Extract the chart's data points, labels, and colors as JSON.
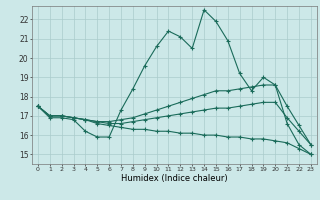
{
  "xlabel": "Humidex (Indice chaleur)",
  "background_color": "#cce8e8",
  "grid_color": "#aacccc",
  "line_color": "#1a6b5a",
  "xlim": [
    -0.5,
    23.5
  ],
  "ylim": [
    14.5,
    22.7
  ],
  "xticks": [
    0,
    1,
    2,
    3,
    4,
    5,
    6,
    7,
    8,
    9,
    10,
    11,
    12,
    13,
    14,
    15,
    16,
    17,
    18,
    19,
    20,
    21,
    22,
    23
  ],
  "yticks": [
    15,
    16,
    17,
    18,
    19,
    20,
    21,
    22
  ],
  "line1_x": [
    0,
    1,
    2,
    3,
    4,
    5,
    6,
    7,
    8,
    9,
    10,
    11,
    12,
    13,
    14,
    15,
    16,
    17,
    18,
    19,
    20,
    21,
    22,
    23
  ],
  "line1_y": [
    17.5,
    16.9,
    16.9,
    16.8,
    16.2,
    15.9,
    15.9,
    17.3,
    18.4,
    19.6,
    20.6,
    21.4,
    21.1,
    20.5,
    22.5,
    21.9,
    20.9,
    19.2,
    18.3,
    19.0,
    18.6,
    16.6,
    15.5,
    15.0
  ],
  "line2_x": [
    0,
    1,
    2,
    3,
    4,
    5,
    6,
    7,
    8,
    9,
    10,
    11,
    12,
    13,
    14,
    15,
    16,
    17,
    18,
    19,
    20,
    21,
    22,
    23
  ],
  "line2_y": [
    17.5,
    17.0,
    17.0,
    16.9,
    16.8,
    16.7,
    16.7,
    16.8,
    16.9,
    17.1,
    17.3,
    17.5,
    17.7,
    17.9,
    18.1,
    18.3,
    18.3,
    18.4,
    18.5,
    18.6,
    18.6,
    17.5,
    16.5,
    15.5
  ],
  "line3_x": [
    0,
    1,
    2,
    3,
    4,
    5,
    6,
    7,
    8,
    9,
    10,
    11,
    12,
    13,
    14,
    15,
    16,
    17,
    18,
    19,
    20,
    21,
    22,
    23
  ],
  "line3_y": [
    17.5,
    17.0,
    17.0,
    16.9,
    16.8,
    16.7,
    16.6,
    16.6,
    16.7,
    16.8,
    16.9,
    17.0,
    17.1,
    17.2,
    17.3,
    17.4,
    17.4,
    17.5,
    17.6,
    17.7,
    17.7,
    16.9,
    16.2,
    15.5
  ],
  "line4_x": [
    0,
    1,
    2,
    3,
    4,
    5,
    6,
    7,
    8,
    9,
    10,
    11,
    12,
    13,
    14,
    15,
    16,
    17,
    18,
    19,
    20,
    21,
    22,
    23
  ],
  "line4_y": [
    17.5,
    17.0,
    17.0,
    16.9,
    16.8,
    16.6,
    16.5,
    16.4,
    16.3,
    16.3,
    16.2,
    16.2,
    16.1,
    16.1,
    16.0,
    16.0,
    15.9,
    15.9,
    15.8,
    15.8,
    15.7,
    15.6,
    15.3,
    15.0
  ]
}
